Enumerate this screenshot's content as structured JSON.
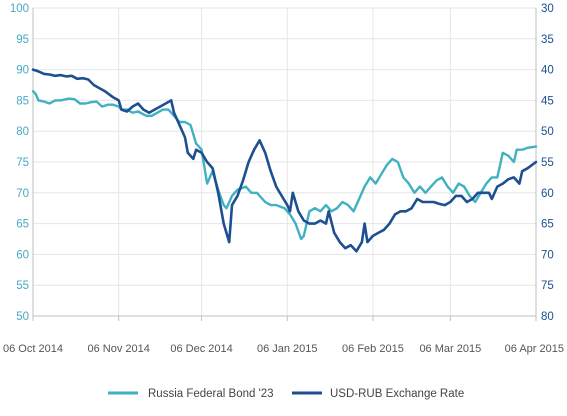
{
  "chart_data": {
    "type": "line",
    "title": "",
    "grid": true,
    "legend_position": "bottom-center",
    "y_left": {
      "label": "",
      "range": [
        50,
        100
      ],
      "ticks": [
        50,
        55,
        60,
        65,
        70,
        75,
        80,
        85,
        90,
        95,
        100
      ],
      "color": "#4aa8c4"
    },
    "y_right": {
      "label": "",
      "range": [
        80,
        30
      ],
      "inverted": true,
      "ticks": [
        30,
        35,
        40,
        45,
        50,
        55,
        60,
        65,
        70,
        75,
        80
      ],
      "color": "#1d4f91"
    },
    "x_axis": {
      "label": "",
      "range": [
        "2014-10-06",
        "2015-04-06"
      ],
      "ticks": [
        {
          "date": "2014-10-06",
          "label": "06 Oct 2014"
        },
        {
          "date": "2014-11-06",
          "label": "06 Nov 2014"
        },
        {
          "date": "2014-12-06",
          "label": "06 Dec 2014"
        },
        {
          "date": "2015-01-06",
          "label": "06 Jan 2015"
        },
        {
          "date": "2015-02-06",
          "label": "06 Feb 2015"
        },
        {
          "date": "2015-03-06",
          "label": "06 Mar 2015"
        },
        {
          "date": "2015-04-06",
          "label": "06 Apr 2015"
        }
      ]
    },
    "series": [
      {
        "name": "Russia Federal Bond '23",
        "axis": "left",
        "color": "#40b1c0",
        "points": [
          [
            "2014-10-06",
            86.5
          ],
          [
            "2014-10-07",
            86.0
          ],
          [
            "2014-10-08",
            85.0
          ],
          [
            "2014-10-10",
            84.8
          ],
          [
            "2014-10-12",
            84.5
          ],
          [
            "2014-10-14",
            85.0
          ],
          [
            "2014-10-16",
            85.0
          ],
          [
            "2014-10-19",
            85.3
          ],
          [
            "2014-10-21",
            85.2
          ],
          [
            "2014-10-23",
            84.5
          ],
          [
            "2014-10-25",
            84.5
          ],
          [
            "2014-10-27",
            84.7
          ],
          [
            "2014-10-29",
            84.8
          ],
          [
            "2014-10-31",
            84.0
          ],
          [
            "2014-11-02",
            84.3
          ],
          [
            "2014-11-04",
            84.3
          ],
          [
            "2014-11-06",
            84.0
          ],
          [
            "2014-11-07",
            83.5
          ],
          [
            "2014-11-09",
            83.5
          ],
          [
            "2014-11-11",
            83.0
          ],
          [
            "2014-11-13",
            83.2
          ],
          [
            "2014-11-16",
            82.5
          ],
          [
            "2014-11-18",
            82.5
          ],
          [
            "2014-11-20",
            83.0
          ],
          [
            "2014-11-22",
            83.5
          ],
          [
            "2014-11-24",
            83.5
          ],
          [
            "2014-11-26",
            82.5
          ],
          [
            "2014-11-28",
            81.5
          ],
          [
            "2014-11-30",
            81.5
          ],
          [
            "2014-12-02",
            81.0
          ],
          [
            "2014-12-04",
            78.0
          ],
          [
            "2014-12-06",
            77.0
          ],
          [
            "2014-12-08",
            71.5
          ],
          [
            "2014-12-10",
            73.5
          ],
          [
            "2014-12-12",
            70.5
          ],
          [
            "2014-12-14",
            68.0
          ],
          [
            "2014-12-15",
            67.5
          ],
          [
            "2014-12-17",
            69.5
          ],
          [
            "2014-12-19",
            70.5
          ],
          [
            "2014-12-22",
            71.0
          ],
          [
            "2014-12-24",
            70.0
          ],
          [
            "2014-12-26",
            70.0
          ],
          [
            "2014-12-29",
            68.5
          ],
          [
            "2014-12-31",
            68.0
          ],
          [
            "2015-01-02",
            68.0
          ],
          [
            "2015-01-05",
            67.5
          ],
          [
            "2015-01-07",
            66.5
          ],
          [
            "2015-01-09",
            65.0
          ],
          [
            "2015-01-11",
            62.5
          ],
          [
            "2015-01-12",
            63.0
          ],
          [
            "2015-01-14",
            67.0
          ],
          [
            "2015-01-16",
            67.5
          ],
          [
            "2015-01-18",
            67.0
          ],
          [
            "2015-01-20",
            68.0
          ],
          [
            "2015-01-22",
            67.0
          ],
          [
            "2015-01-24",
            67.5
          ],
          [
            "2015-01-26",
            68.5
          ],
          [
            "2015-01-28",
            68.0
          ],
          [
            "2015-01-30",
            67.0
          ],
          [
            "2015-02-01",
            69.0
          ],
          [
            "2015-02-03",
            71.0
          ],
          [
            "2015-02-05",
            72.5
          ],
          [
            "2015-02-07",
            71.5
          ],
          [
            "2015-02-09",
            73.0
          ],
          [
            "2015-02-11",
            74.5
          ],
          [
            "2015-02-13",
            75.5
          ],
          [
            "2015-02-15",
            75.0
          ],
          [
            "2015-02-17",
            72.5
          ],
          [
            "2015-02-19",
            71.5
          ],
          [
            "2015-02-21",
            70.0
          ],
          [
            "2015-02-23",
            71.0
          ],
          [
            "2015-02-25",
            70.0
          ],
          [
            "2015-02-27",
            71.0
          ],
          [
            "2015-03-01",
            72.0
          ],
          [
            "2015-03-03",
            72.5
          ],
          [
            "2015-03-05",
            71.0
          ],
          [
            "2015-03-07",
            70.0
          ],
          [
            "2015-03-09",
            71.5
          ],
          [
            "2015-03-11",
            71.0
          ],
          [
            "2015-03-13",
            69.5
          ],
          [
            "2015-03-15",
            68.5
          ],
          [
            "2015-03-17",
            70.0
          ],
          [
            "2015-03-19",
            71.5
          ],
          [
            "2015-03-21",
            72.5
          ],
          [
            "2015-03-23",
            72.5
          ],
          [
            "2015-03-25",
            76.5
          ],
          [
            "2015-03-27",
            76.0
          ],
          [
            "2015-03-29",
            75.0
          ],
          [
            "2015-03-30",
            77.0
          ],
          [
            "2015-04-01",
            77.0
          ],
          [
            "2015-04-03",
            77.3
          ],
          [
            "2015-04-06",
            77.5
          ]
        ]
      },
      {
        "name": "USD-RUB Exchange Rate",
        "axis": "right",
        "color": "#1d4f91",
        "points": [
          [
            "2014-10-06",
            40.0
          ],
          [
            "2014-10-08",
            40.3
          ],
          [
            "2014-10-10",
            40.7
          ],
          [
            "2014-10-12",
            40.8
          ],
          [
            "2014-10-14",
            41.0
          ],
          [
            "2014-10-16",
            40.9
          ],
          [
            "2014-10-18",
            41.1
          ],
          [
            "2014-10-20",
            41.0
          ],
          [
            "2014-10-22",
            41.5
          ],
          [
            "2014-10-24",
            41.4
          ],
          [
            "2014-10-26",
            41.6
          ],
          [
            "2014-10-28",
            42.5
          ],
          [
            "2014-10-30",
            43.0
          ],
          [
            "2014-11-01",
            43.5
          ],
          [
            "2014-11-04",
            44.5
          ],
          [
            "2014-11-06",
            45.0
          ],
          [
            "2014-11-07",
            46.5
          ],
          [
            "2014-11-09",
            46.8
          ],
          [
            "2014-11-11",
            46.0
          ],
          [
            "2014-11-13",
            45.5
          ],
          [
            "2014-11-15",
            46.5
          ],
          [
            "2014-11-17",
            47.0
          ],
          [
            "2014-11-19",
            46.5
          ],
          [
            "2014-11-21",
            46.0
          ],
          [
            "2014-11-23",
            45.5
          ],
          [
            "2014-11-25",
            45.0
          ],
          [
            "2014-11-26",
            47.0
          ],
          [
            "2014-11-28",
            49.0
          ],
          [
            "2014-11-30",
            51.0
          ],
          [
            "2014-12-01",
            53.5
          ],
          [
            "2014-12-03",
            54.5
          ],
          [
            "2014-12-04",
            53.0
          ],
          [
            "2014-12-06",
            53.5
          ],
          [
            "2014-12-08",
            55.0
          ],
          [
            "2014-12-10",
            56.0
          ],
          [
            "2014-12-12",
            60.0
          ],
          [
            "2014-12-14",
            65.0
          ],
          [
            "2014-12-16",
            68.0
          ],
          [
            "2014-12-17",
            62.0
          ],
          [
            "2014-12-19",
            60.5
          ],
          [
            "2014-12-21",
            58.0
          ],
          [
            "2014-12-23",
            55.0
          ],
          [
            "2014-12-25",
            53.0
          ],
          [
            "2014-12-27",
            51.5
          ],
          [
            "2014-12-29",
            53.5
          ],
          [
            "2014-12-31",
            56.5
          ],
          [
            "2015-01-02",
            59.0
          ],
          [
            "2015-01-04",
            60.5
          ],
          [
            "2015-01-06",
            62.0
          ],
          [
            "2015-01-07",
            63.0
          ],
          [
            "2015-01-08",
            60.0
          ],
          [
            "2015-01-10",
            63.0
          ],
          [
            "2015-01-12",
            64.5
          ],
          [
            "2015-01-14",
            65.0
          ],
          [
            "2015-01-16",
            65.0
          ],
          [
            "2015-01-18",
            64.5
          ],
          [
            "2015-01-20",
            65.0
          ],
          [
            "2015-01-21",
            63.0
          ],
          [
            "2015-01-23",
            66.5
          ],
          [
            "2015-01-25",
            68.0
          ],
          [
            "2015-01-27",
            69.0
          ],
          [
            "2015-01-29",
            68.5
          ],
          [
            "2015-01-31",
            69.5
          ],
          [
            "2015-02-02",
            68.0
          ],
          [
            "2015-02-03",
            65.0
          ],
          [
            "2015-02-04",
            68.0
          ],
          [
            "2015-02-06",
            67.0
          ],
          [
            "2015-02-08",
            66.5
          ],
          [
            "2015-02-10",
            66.0
          ],
          [
            "2015-02-12",
            65.0
          ],
          [
            "2015-02-14",
            63.5
          ],
          [
            "2015-02-16",
            63.0
          ],
          [
            "2015-02-18",
            63.0
          ],
          [
            "2015-02-20",
            62.5
          ],
          [
            "2015-02-22",
            61.0
          ],
          [
            "2015-02-24",
            61.5
          ],
          [
            "2015-02-26",
            61.5
          ],
          [
            "2015-02-28",
            61.5
          ],
          [
            "2015-03-02",
            61.8
          ],
          [
            "2015-03-04",
            62.0
          ],
          [
            "2015-03-06",
            61.5
          ],
          [
            "2015-03-08",
            60.5
          ],
          [
            "2015-03-10",
            60.5
          ],
          [
            "2015-03-12",
            61.5
          ],
          [
            "2015-03-14",
            61.0
          ],
          [
            "2015-03-16",
            60.0
          ],
          [
            "2015-03-18",
            60.0
          ],
          [
            "2015-03-20",
            60.0
          ],
          [
            "2015-03-21",
            61.0
          ],
          [
            "2015-03-23",
            59.0
          ],
          [
            "2015-03-25",
            58.5
          ],
          [
            "2015-03-27",
            57.8
          ],
          [
            "2015-03-29",
            57.5
          ],
          [
            "2015-03-31",
            58.5
          ],
          [
            "2015-04-01",
            56.5
          ],
          [
            "2015-04-03",
            56.0
          ],
          [
            "2015-04-06",
            55.0
          ]
        ]
      }
    ]
  }
}
